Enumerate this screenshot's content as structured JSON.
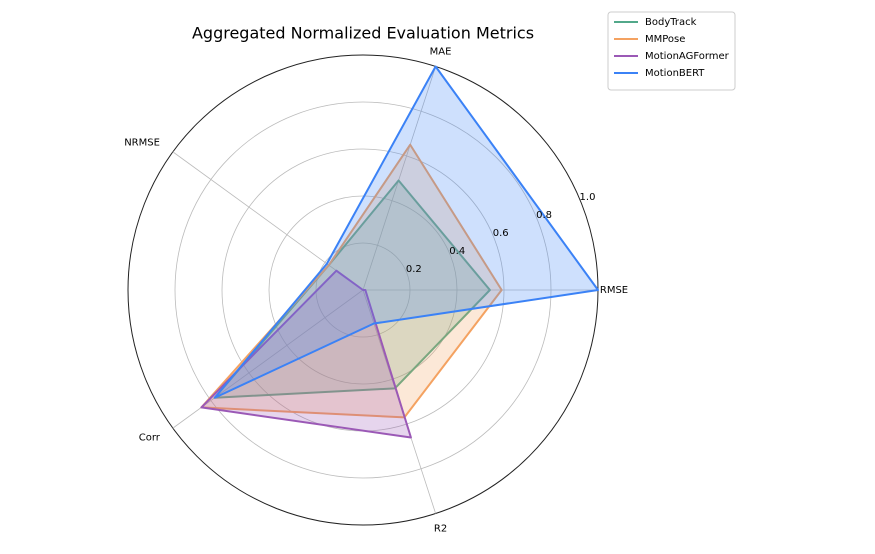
{
  "chart_data": {
    "type": "radar",
    "title": "Aggregated Normalized Evaluation Metrics",
    "categories": [
      "RMSE",
      "MAE",
      "NRMSE",
      "Corr",
      "R2"
    ],
    "ylim": [
      0,
      1
    ],
    "yticks": [
      0.2,
      0.4,
      0.6,
      0.8,
      {
        "value": 1,
        "label": "1.0"
      }
    ],
    "grid": true,
    "legend": "upper right",
    "series": [
      {
        "name": "BodyTrack",
        "color": "#52a88a",
        "values": [
          0.54,
          0.49,
          0.18,
          0.78,
          0.44
        ]
      },
      {
        "name": "MMPose",
        "color": "#f4a261",
        "values": [
          0.59,
          0.65,
          0.18,
          0.85,
          0.57
        ]
      },
      {
        "name": "MotionAGFormer",
        "color": "#9b59b6",
        "values": [
          0.01,
          0.0,
          0.14,
          0.85,
          0.66
        ]
      },
      {
        "name": "MotionBERT",
        "color": "#3b82f6",
        "values": [
          1.0,
          1.0,
          0.19,
          0.78,
          0.15
        ]
      }
    ]
  }
}
